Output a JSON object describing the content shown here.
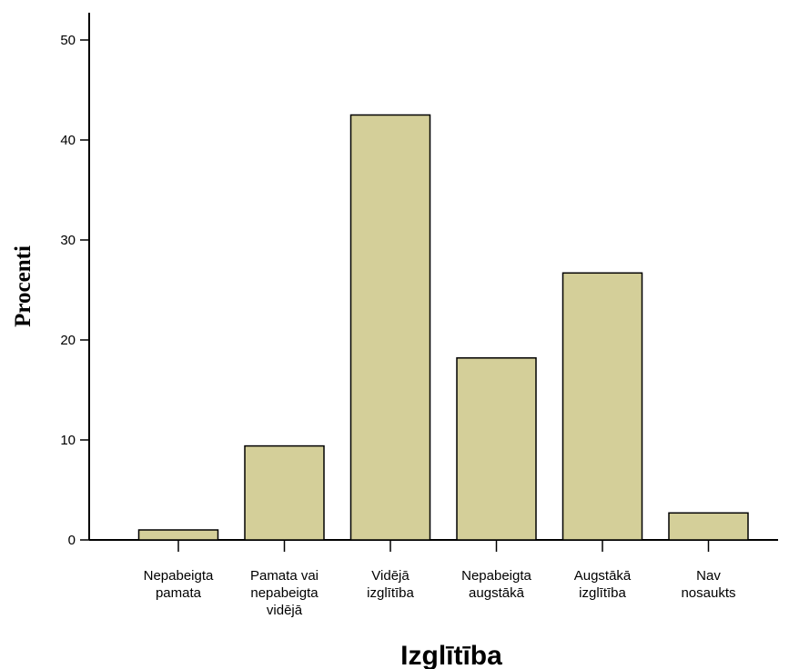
{
  "chart_data": {
    "type": "bar",
    "categories": [
      [
        "Nepabeigta",
        "pamata"
      ],
      [
        "Pamata vai",
        "nepabeigta",
        "vidējā"
      ],
      [
        "Vidējā",
        "izglītība"
      ],
      [
        "Nepabeigta",
        "augstākā"
      ],
      [
        "Augstākā",
        "izglītība"
      ],
      [
        "Nav",
        "nosaukts"
      ]
    ],
    "values": [
      1.0,
      9.4,
      42.5,
      18.2,
      26.7,
      2.7
    ],
    "yticks": [
      0,
      10,
      20,
      30,
      40,
      50
    ],
    "ylim": [
      0,
      51
    ],
    "xlabel": "Izglītība",
    "ylabel": "Procenti",
    "bar_color": "#d4cf99",
    "grid": false,
    "legend": "none"
  }
}
